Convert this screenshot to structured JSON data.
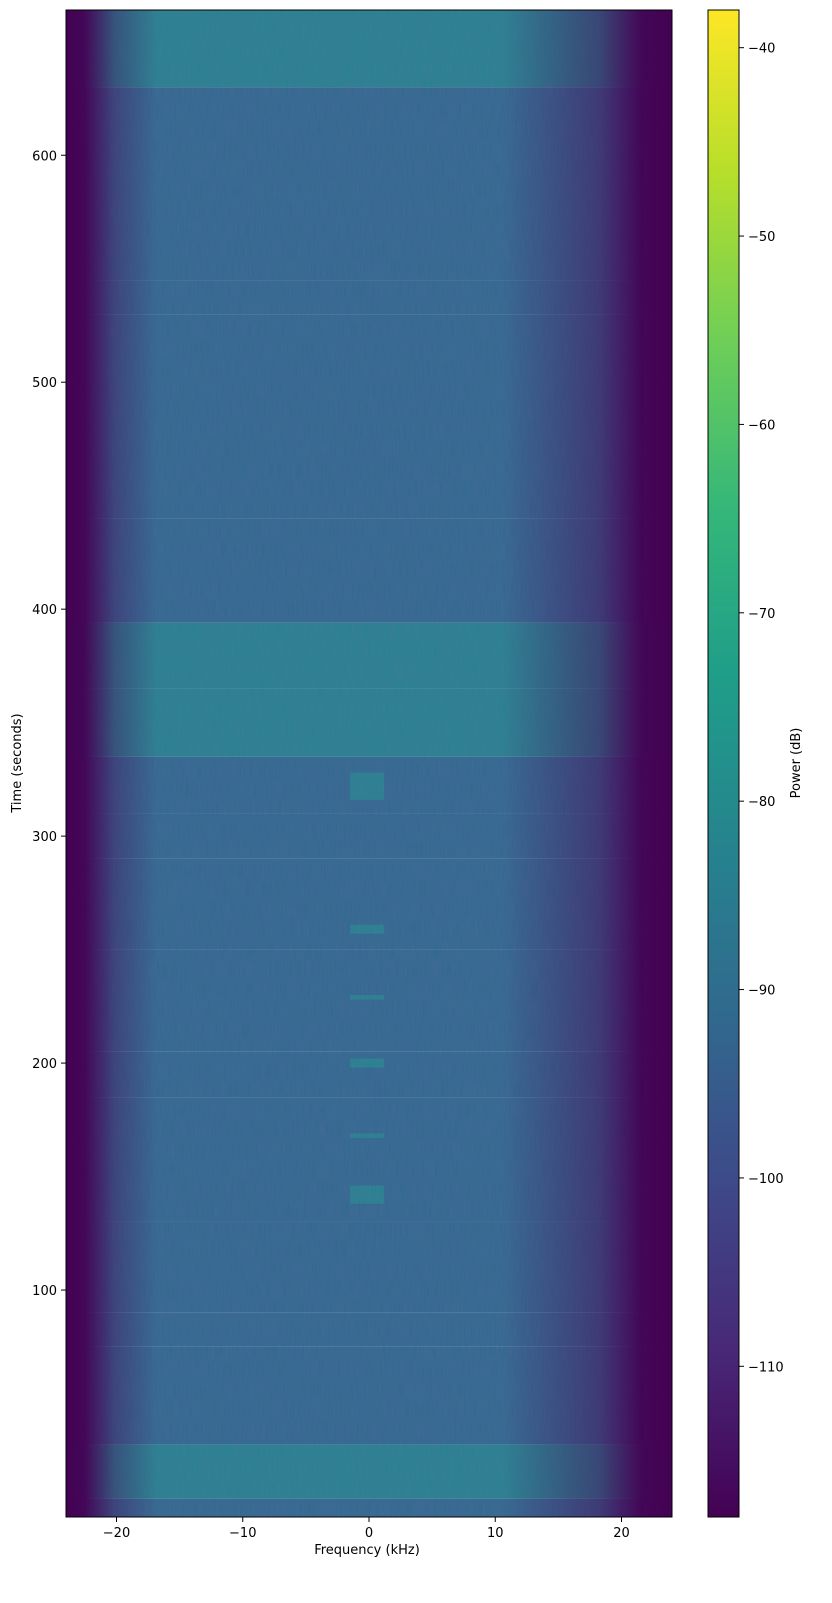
{
  "chart_data": {
    "type": "heatmap",
    "xlabel": "Frequency (kHz)",
    "ylabel": "Time (seconds)",
    "xlim": [
      -24,
      24
    ],
    "ylim": [
      0,
      664
    ],
    "x_ticks": [
      -20,
      -10,
      0,
      10,
      20
    ],
    "x_tick_labels": [
      "−20",
      "−10",
      "0",
      "10",
      "20"
    ],
    "y_ticks": [
      100,
      200,
      300,
      400,
      500,
      600
    ],
    "y_tick_labels": [
      "100",
      "200",
      "300",
      "400",
      "500",
      "600"
    ],
    "colorbar": {
      "label": "Power (dB)",
      "range": [
        -118,
        -38
      ],
      "ticks": [
        -40,
        -50,
        -60,
        -70,
        -80,
        -90,
        -100,
        -110
      ],
      "tick_labels": [
        "−40",
        "−50",
        "−60",
        "−70",
        "−80",
        "−90",
        "−100",
        "−110"
      ],
      "colormap": [
        "#440154",
        "#482878",
        "#3e4989",
        "#31688e",
        "#26828e",
        "#1f9e89",
        "#35b779",
        "#6ece58",
        "#b5de2b",
        "#fde725"
      ]
    },
    "grid": false,
    "bands": [
      {
        "t0": 0,
        "t1": 8,
        "level": -95
      },
      {
        "t0": 8,
        "t1": 32,
        "level": -86
      },
      {
        "t0": 32,
        "t1": 75,
        "level": -92
      },
      {
        "t0": 75,
        "t1": 90,
        "level": -89
      },
      {
        "t0": 90,
        "t1": 130,
        "level": -93
      },
      {
        "t0": 130,
        "t1": 185,
        "level": -93
      },
      {
        "t0": 185,
        "t1": 205,
        "level": -91
      },
      {
        "t0": 205,
        "t1": 250,
        "level": -92
      },
      {
        "t0": 250,
        "t1": 290,
        "level": -93
      },
      {
        "t0": 290,
        "t1": 310,
        "level": -88
      },
      {
        "t0": 310,
        "t1": 335,
        "level": -95
      },
      {
        "t0": 335,
        "t1": 365,
        "level": -85
      },
      {
        "t0": 365,
        "t1": 394,
        "level": -84
      },
      {
        "t0": 394,
        "t1": 440,
        "level": -87
      },
      {
        "t0": 440,
        "t1": 530,
        "level": -89
      },
      {
        "t0": 530,
        "t1": 545,
        "level": -90
      },
      {
        "t0": 545,
        "t1": 630,
        "level": -87
      },
      {
        "t0": 630,
        "t1": 664,
        "level": -86
      }
    ],
    "tones": [
      {
        "f0": -1.5,
        "f1": 1.2,
        "t0": 138,
        "t1": 146,
        "level": -82
      },
      {
        "f0": -1.5,
        "f1": 1.2,
        "t0": 167,
        "t1": 169,
        "level": -84
      },
      {
        "f0": -1.5,
        "f1": 1.2,
        "t0": 198,
        "t1": 202,
        "level": -83
      },
      {
        "f0": -1.5,
        "f1": 1.2,
        "t0": 228,
        "t1": 230,
        "level": -84
      },
      {
        "f0": -1.5,
        "f1": 1.2,
        "t0": 257,
        "t1": 261,
        "level": -83
      },
      {
        "f0": -1.5,
        "f1": 1.2,
        "t0": 316,
        "t1": 328,
        "level": -80
      },
      {
        "f0": -1.5,
        "f1": 1.2,
        "t0": 346,
        "t1": 348,
        "level": -84
      }
    ]
  }
}
